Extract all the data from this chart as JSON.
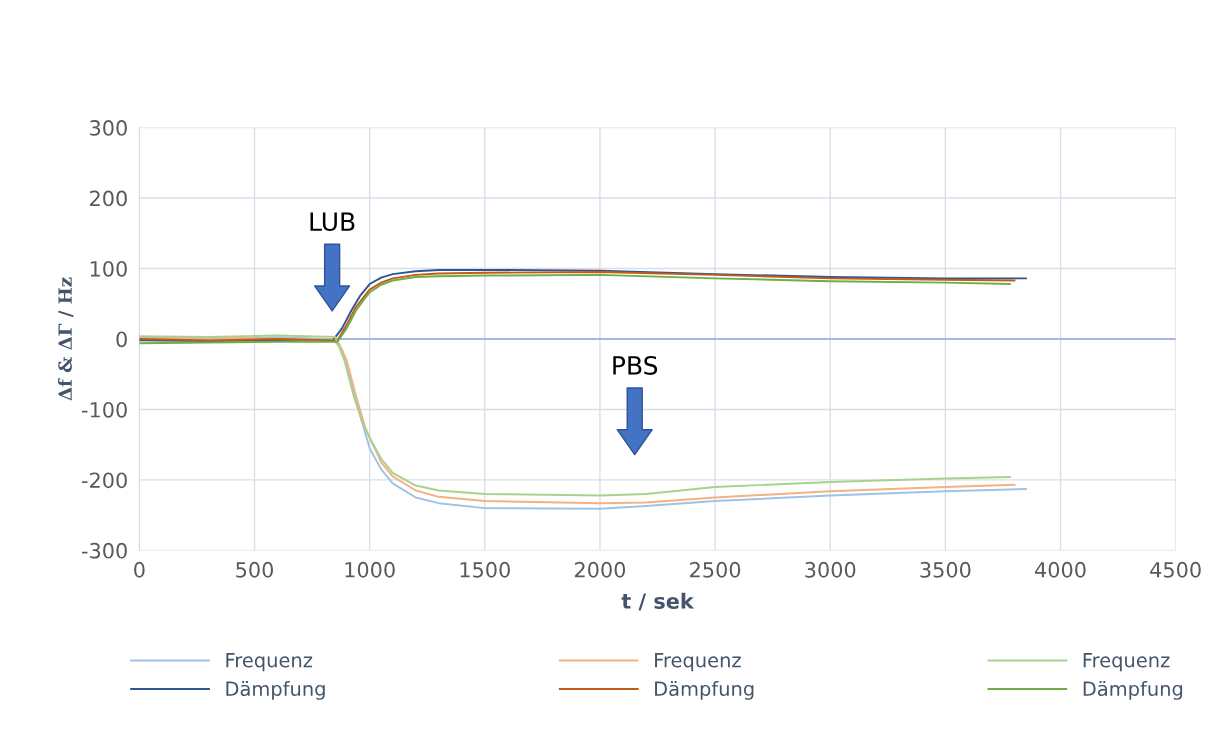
{
  "chart_data": {
    "type": "line",
    "xlabel": "t / sek",
    "ylabel": "Δf & ΔΓ / Hz",
    "xlim": [
      0,
      4500
    ],
    "xticks": [
      0,
      500,
      1000,
      1500,
      2000,
      2500,
      3000,
      3500,
      4000,
      4500
    ],
    "ylim": [
      -300,
      300
    ],
    "yticks": [
      -300,
      -200,
      -100,
      0,
      100,
      200,
      300
    ],
    "grid": true,
    "legend": "bottom",
    "marker": "none",
    "line_style": "solid",
    "ref_lines": [
      {
        "axis": "y",
        "value": 0,
        "color": "#8faadc"
      }
    ],
    "annotations": [
      "LUB",
      "PBS"
    ],
    "series": [
      {
        "name": "Frequenz",
        "color": "#9dc3e6",
        "x": [
          0,
          300,
          600,
          840,
          880,
          920,
          960,
          1000,
          1050,
          1100,
          1200,
          1300,
          1500,
          2000,
          2200,
          2500,
          3000,
          3500,
          3850
        ],
        "values": [
          2,
          0,
          2,
          0,
          -15,
          -60,
          -110,
          -155,
          -185,
          -205,
          -225,
          -233,
          -240,
          -241,
          -237,
          -230,
          -222,
          -216,
          -213
        ]
      },
      {
        "name": "Dämpfung",
        "color": "#2f5597",
        "x": [
          0,
          300,
          600,
          840,
          880,
          920,
          960,
          1000,
          1050,
          1100,
          1200,
          1300,
          1500,
          2000,
          2500,
          3000,
          3500,
          3850
        ],
        "values": [
          -2,
          -3,
          -2,
          -2,
          15,
          40,
          62,
          78,
          87,
          92,
          96,
          98,
          98,
          97,
          92,
          88,
          86,
          86
        ]
      },
      {
        "name": "Frequenz",
        "color": "#f4b183",
        "x": [
          0,
          300,
          600,
          860,
          900,
          940,
          980,
          1000,
          1050,
          1100,
          1200,
          1300,
          1500,
          2000,
          2200,
          2500,
          3000,
          3500,
          3800
        ],
        "values": [
          0,
          2,
          0,
          -2,
          -30,
          -80,
          -125,
          -140,
          -175,
          -195,
          -215,
          -224,
          -230,
          -233,
          -232,
          -225,
          -216,
          -210,
          -207
        ]
      },
      {
        "name": "Dämpfung",
        "color": "#c55a11",
        "x": [
          0,
          300,
          600,
          860,
          900,
          940,
          980,
          1000,
          1050,
          1100,
          1200,
          1300,
          1500,
          2000,
          2500,
          3000,
          3500,
          3800
        ],
        "values": [
          0,
          -2,
          0,
          -2,
          20,
          45,
          62,
          70,
          80,
          86,
          91,
          93,
          94,
          95,
          91,
          86,
          84,
          83
        ]
      },
      {
        "name": "Frequenz",
        "color": "#a9d18e",
        "x": [
          0,
          300,
          600,
          850,
          890,
          930,
          970,
          1000,
          1050,
          1100,
          1200,
          1300,
          1500,
          2000,
          2200,
          2500,
          3000,
          3500,
          3780
        ],
        "values": [
          4,
          3,
          5,
          3,
          -30,
          -80,
          -120,
          -140,
          -170,
          -190,
          -208,
          -215,
          -220,
          -222,
          -220,
          -210,
          -203,
          -198,
          -196
        ]
      },
      {
        "name": "Dämpfung",
        "color": "#70ad47",
        "x": [
          0,
          300,
          600,
          860,
          900,
          940,
          980,
          1000,
          1050,
          1100,
          1200,
          1300,
          1500,
          2000,
          2500,
          3000,
          3500,
          3780
        ],
        "values": [
          -6,
          -5,
          -4,
          -4,
          15,
          40,
          58,
          66,
          77,
          83,
          88,
          89,
          90,
          91,
          86,
          82,
          80,
          78
        ]
      }
    ]
  }
}
